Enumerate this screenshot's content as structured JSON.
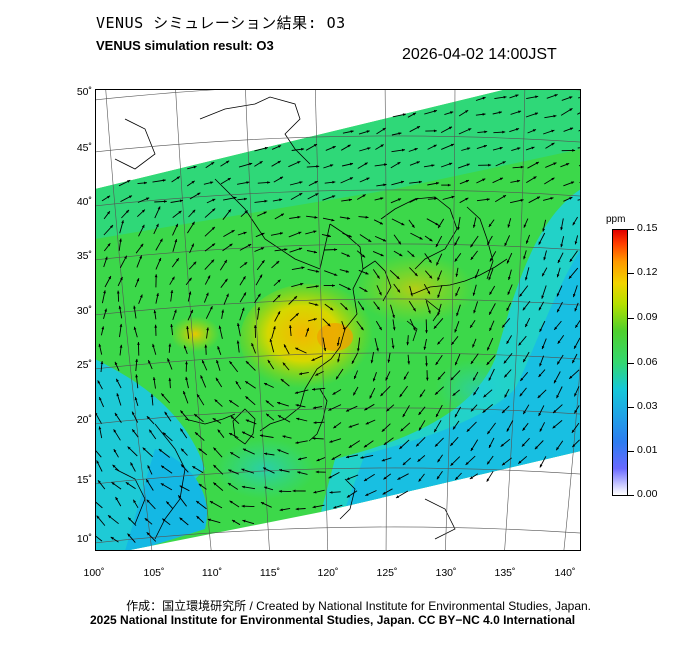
{
  "header": {
    "title_jp": "VENUS シミュレーション結果: O3",
    "title_en": "VENUS simulation result: O3",
    "timestamp": "2026-04-02 14:00JST"
  },
  "map": {
    "lat_labels": [
      "50˚",
      "45˚",
      "40˚",
      "35˚",
      "30˚",
      "25˚",
      "20˚",
      "15˚",
      "10˚"
    ],
    "lon_labels": [
      "100˚",
      "105˚",
      "110˚",
      "115˚",
      "120˚",
      "125˚",
      "130˚",
      "135˚",
      "140˚"
    ],
    "lat_values": [
      50,
      45,
      40,
      35,
      30,
      25,
      20,
      15,
      10
    ],
    "lon_values": [
      100,
      105,
      110,
      115,
      120,
      125,
      130,
      135,
      140
    ],
    "variable": "O3",
    "colors": {
      "low": "#ffffff",
      "mid": "#33d870",
      "high": "#e00000",
      "land_outline": "#000000"
    }
  },
  "colorbar": {
    "unit": "ppm",
    "ticks": [
      "0.15",
      "0.12",
      "0.09",
      "0.06",
      "0.03",
      "0.01",
      "0.00"
    ],
    "tick_values": [
      0.15,
      0.12,
      0.09,
      0.06,
      0.03,
      0.01,
      0.0
    ]
  },
  "footer": {
    "credit": "作成：国立環境研究所 / Created by National Institute for Environmental Studies, Japan.",
    "copyright": "2025 National Institute for Environmental Studies, Japan. CC BY−NC 4.0 International"
  }
}
